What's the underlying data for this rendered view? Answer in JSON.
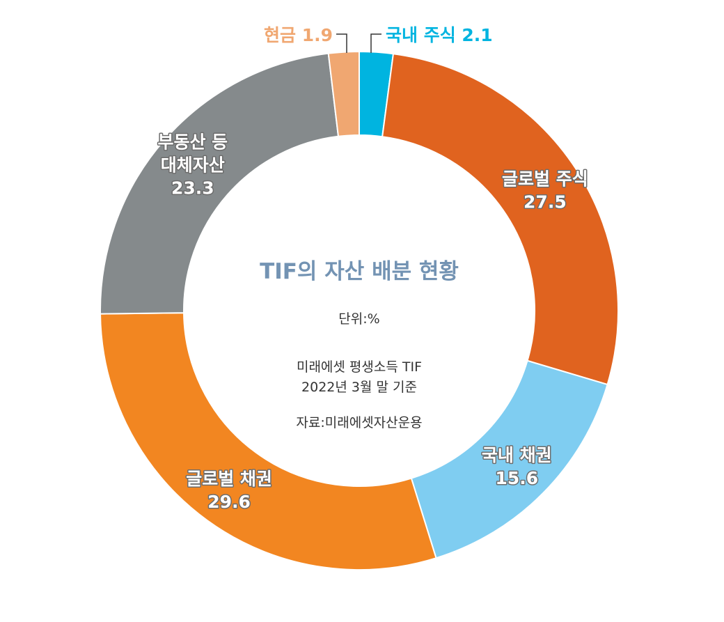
{
  "chart_data": {
    "type": "pie",
    "title": "TIF의 자산 배분 현황",
    "unit_label": "단위:%",
    "note_lines": [
      "미래에셋 평생소득 TIF",
      "2022년 3월 말 기준"
    ],
    "source": "자료:미래에셋자산운용",
    "title_color": "#7393b3",
    "slices": [
      {
        "label_lines": [
          "국내 주식"
        ],
        "value": 2.1,
        "value_text": "2.1",
        "color": "#00b4e0",
        "placement": "outside"
      },
      {
        "label_lines": [
          "글로벌 주식"
        ],
        "value": 27.5,
        "value_text": "27.5",
        "color": "#e0631f",
        "placement": "inside"
      },
      {
        "label_lines": [
          "국내 채권"
        ],
        "value": 15.6,
        "value_text": "15.6",
        "color": "#7fcdf1",
        "placement": "inside"
      },
      {
        "label_lines": [
          "글로벌 채권"
        ],
        "value": 29.6,
        "value_text": "29.6",
        "color": "#f28621",
        "placement": "inside"
      },
      {
        "label_lines": [
          "부동산 등",
          "대체자산"
        ],
        "value": 23.3,
        "value_text": "23.3",
        "color": "#858a8c",
        "placement": "inside"
      },
      {
        "label_lines": [
          "현금"
        ],
        "value": 1.9,
        "value_text": "1.9",
        "color": "#f0a771",
        "placement": "outside"
      }
    ]
  }
}
